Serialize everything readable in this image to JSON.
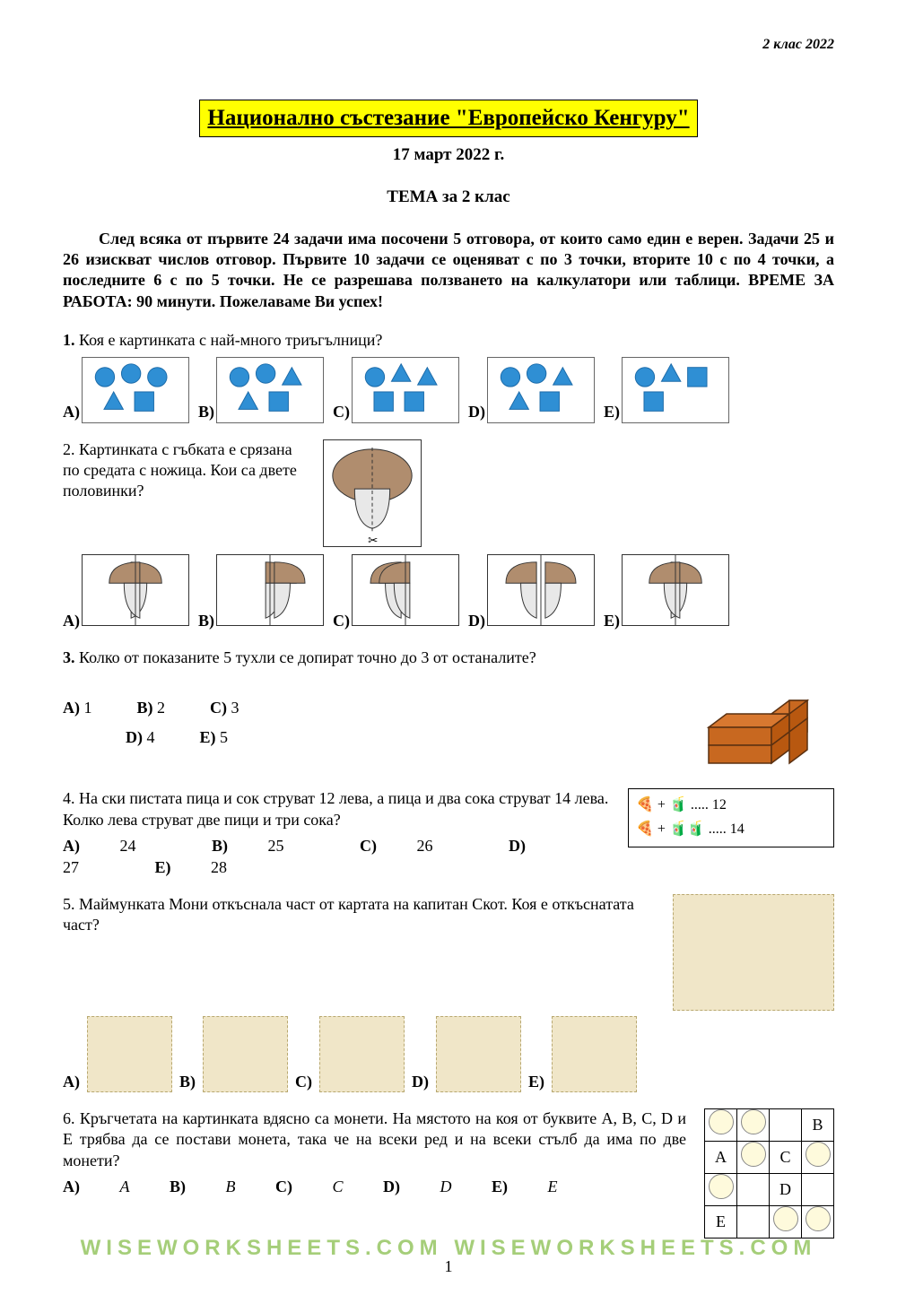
{
  "header": {
    "top_right": "2 клас 2022"
  },
  "title": "Национално състезание \"Европейско Кенгуру\"",
  "date": "17 март 2022 г.",
  "theme": "ТЕМА за 2 клас",
  "intro": "След всяка от първите 24 задачи има посочени 5 отговора, от които само един е верен. Задачи 25 и 26 изискват числов отговор. Първите 10 задачи се оценяват с по 3 точки, вторите 10 с по 4 точки, а последните 6 с по 5 точки. Не се разрешава ползването на калкулатори или таблици. ВРЕМЕ ЗА РАБОТА: 90 минути. Пожелаваме Ви успех!",
  "labels": {
    "A": "A)",
    "B": "B)",
    "C": "C)",
    "D": "D)",
    "E": "E)"
  },
  "q1": {
    "num": "1.",
    "text": "Коя е картинката с най-много триъгълници?",
    "shapes": {
      "color_fill": "#2f8fd4",
      "color_stroke": "#1b6aa8",
      "options": [
        {
          "circles": 3,
          "triangles": 1,
          "squares": 1
        },
        {
          "circles": 2,
          "triangles": 2,
          "squares": 1
        },
        {
          "circles": 1,
          "triangles": 2,
          "squares": 2
        },
        {
          "circles": 2,
          "triangles": 2,
          "squares": 1
        },
        {
          "circles": 1,
          "triangles": 1,
          "squares": 2
        }
      ]
    }
  },
  "q2": {
    "num": "2.",
    "text": "Картинката с гъбката е срязана по средата с ножица. Кои са двете половинки?",
    "mushroom": {
      "cap_color": "#b08d6e",
      "stem_color": "#e8e8e8",
      "outline": "#333333"
    }
  },
  "q3": {
    "num": "3.",
    "text": "Колко от показаните 5 тухли се допират точно до 3 от останалите?",
    "options": {
      "A": "1",
      "B": "2",
      "C": "3",
      "D": "4",
      "E": "5"
    },
    "brick_color": "#d87830",
    "brick_outline": "#5a3010"
  },
  "q4": {
    "num": "4.",
    "text": "На ски пистата пица и сок струват 12 лева, а пица и два сока струват 14 лева. Колко лева струват две пици и три сока?",
    "options": {
      "A": "24",
      "B": "25",
      "C": "26",
      "D": "27",
      "E": "28"
    },
    "box": {
      "line1": "..... 12",
      "line2": "..... 14",
      "pizza_color": "#e0a030",
      "juice_color": "#e8c020"
    }
  },
  "q5": {
    "num": "5.",
    "text": "Маймунката Мони откъснала част от картата на капитан Скот. Коя е откъснатата част?",
    "map_bg": "#f0e6c8"
  },
  "q6": {
    "num": "6.",
    "text": "Кръгчетата на картинката вдясно са монети. На мястото на коя от буквите A, B, C, D и E трябва да се постави монета, така че на всеки ред и на всеки стълб да има по две монети?",
    "options": {
      "A": "A",
      "B": "B",
      "C": "C",
      "D": "D",
      "E": "E"
    },
    "grid": {
      "rows": [
        [
          "coin",
          "coin",
          "",
          "B"
        ],
        [
          "A",
          "coin",
          "C",
          "coin"
        ],
        [
          "coin",
          "",
          "D",
          ""
        ],
        [
          "E",
          "",
          "coin",
          "coin"
        ]
      ]
    }
  },
  "page_number": "1",
  "watermark": "WISEWORKSHEETS.COM",
  "watermark2": "WISEWORKSHEETS.COM"
}
